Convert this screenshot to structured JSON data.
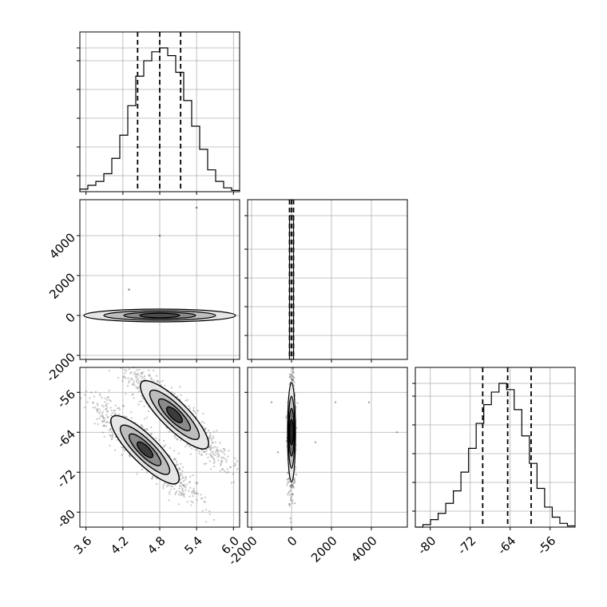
{
  "chart_data": {
    "type": "corner",
    "grid": true,
    "parameters": [
      {
        "range": [
          3.5,
          6.1
        ],
        "ticks": [
          "3.6",
          "4.2",
          "4.8",
          "5.4",
          "6.0"
        ],
        "quantiles": [
          4.44,
          4.8,
          5.14
        ]
      },
      {
        "range": [
          -2200,
          5800
        ],
        "ticks": [
          "-2000",
          "0",
          "2000",
          "4000"
        ],
        "quantiles": [
          -100,
          0,
          100
        ]
      },
      {
        "range": [
          -83,
          -51
        ],
        "ticks": [
          "-80",
          "-72",
          "-64",
          "-56"
        ],
        "quantiles": [
          -69.5,
          -64.5,
          -59.8
        ]
      }
    ],
    "histograms": [
      {
        "param": 0,
        "counts": [
          2,
          5,
          8,
          14,
          26,
          44,
          67,
          90,
          102,
          109,
          112,
          106,
          93,
          71,
          51,
          33,
          17,
          8,
          3,
          1
        ]
      },
      {
        "param": 1,
        "spike_at": 0,
        "spike_count": 128,
        "max_count": 128
      },
      {
        "param": 2,
        "counts": [
          0,
          2,
          6,
          11,
          19,
          29,
          44,
          63,
          83,
          98,
          108,
          115,
          110,
          94,
          73,
          51,
          31,
          16,
          8,
          3,
          1
        ]
      }
    ],
    "scatter_panels": [
      {
        "x": 0,
        "y": 1,
        "description_points": [
          [
            4.8,
            0
          ],
          [
            5.4,
            5400
          ],
          [
            4.8,
            4000
          ],
          [
            4.3,
            1300
          ]
        ]
      },
      {
        "x": 0,
        "y": 2,
        "clusters": [
          {
            "center": [
              4.56,
              -67.5
            ],
            "spread_along": [
              0.5,
              8.0
            ]
          },
          {
            "center": [
              5.04,
              -60.5
            ],
            "spread_along": [
              0.5,
              8.0
            ]
          }
        ]
      },
      {
        "x": 1,
        "y": 2,
        "center": [
          0,
          -64
        ],
        "spread": [
          60,
          9
        ]
      }
    ]
  }
}
